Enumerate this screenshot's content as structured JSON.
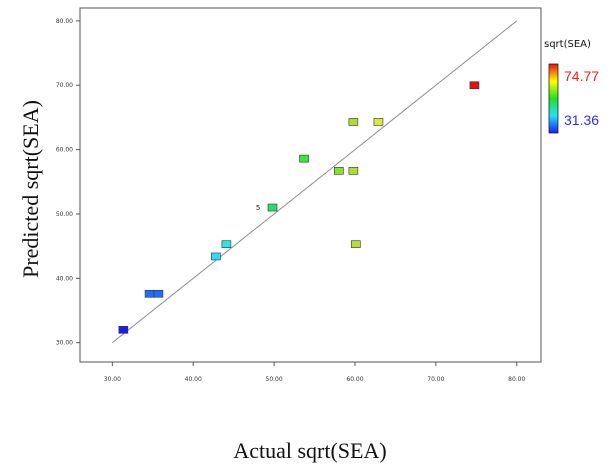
{
  "chart_data": {
    "type": "scatter",
    "title": "",
    "xlabel": "Actual sqrt(SEA)",
    "ylabel": "Predicted sqrt(SEA)",
    "xlim": [
      26,
      83
    ],
    "ylim": [
      27,
      82
    ],
    "xticks": [
      30,
      40,
      50,
      60,
      70,
      80
    ],
    "yticks": [
      30,
      40,
      50,
      60,
      70,
      80
    ],
    "xtick_labels": [
      "30.00",
      "40.00",
      "50.00",
      "60.00",
      "70.00",
      "80.00"
    ],
    "ytick_labels": [
      "30.00",
      "40.00",
      "50.00",
      "60.00",
      "70.00",
      "80.00"
    ],
    "grid": false,
    "reference_line": {
      "type": "y=x",
      "from": 30,
      "to": 80,
      "color": "#8c8c8c"
    },
    "points": [
      {
        "x": 31.36,
        "y": 32.0,
        "color": "#1a1aff"
      },
      {
        "x": 34.6,
        "y": 37.6,
        "color": "#1f6fff"
      },
      {
        "x": 35.7,
        "y": 37.6,
        "color": "#1f6fff"
      },
      {
        "x": 42.8,
        "y": 43.4,
        "color": "#22e0ff"
      },
      {
        "x": 44.1,
        "y": 45.3,
        "color": "#22e8e8"
      },
      {
        "x": 49.8,
        "y": 51.0,
        "color": "#22e06a"
      },
      {
        "x": 53.7,
        "y": 58.6,
        "color": "#38e838"
      },
      {
        "x": 58.0,
        "y": 56.7,
        "color": "#88e030"
      },
      {
        "x": 59.8,
        "y": 56.7,
        "color": "#a8e030"
      },
      {
        "x": 59.8,
        "y": 64.3,
        "color": "#a8e030"
      },
      {
        "x": 60.1,
        "y": 45.3,
        "color": "#b4e030"
      },
      {
        "x": 62.9,
        "y": 64.3,
        "color": "#d6ea38"
      },
      {
        "x": 74.77,
        "y": 70.0,
        "color": "#e81010"
      }
    ],
    "annotations": [
      {
        "text": "5",
        "x": 48.3,
        "y": 51.0
      }
    ],
    "legend": {
      "title": "sqrt(SEA)",
      "max_label": "74.77",
      "min_label": "31.36",
      "max_color": "#ff1a1a",
      "min_color": "#2b2bff",
      "gradient": [
        "#e81010",
        "#ffff00",
        "#22e022",
        "#22e0ff",
        "#1a1aff"
      ],
      "placement": "right"
    }
  }
}
